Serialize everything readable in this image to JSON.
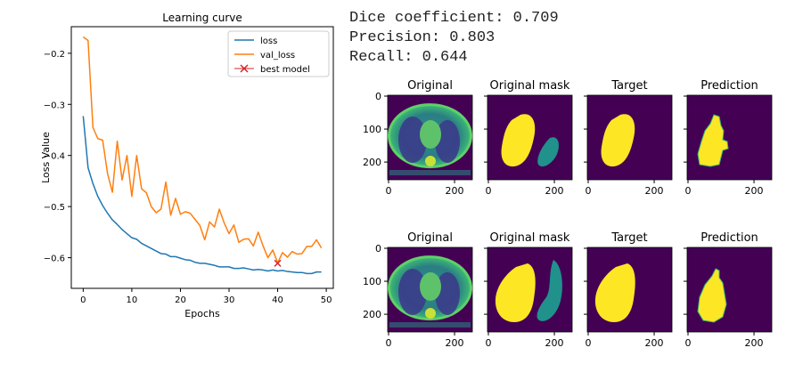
{
  "metrics": [
    {
      "label": "Dice coefficient",
      "value": "0.709"
    },
    {
      "label": "Precision",
      "value": "0.803"
    },
    {
      "label": "Recall",
      "value": "0.644"
    }
  ],
  "chart_data": {
    "type": "line",
    "title": "Learning curve",
    "xlabel": "Epochs",
    "ylabel": "Loss Value",
    "xlim": [
      -2.45,
      51.45
    ],
    "ylim": [
      -0.66,
      -0.148
    ],
    "xticks": [
      0,
      10,
      20,
      30,
      40,
      50
    ],
    "yticks": [
      -0.6,
      -0.5,
      -0.4,
      -0.3,
      -0.2
    ],
    "tick_labels_x": [
      "0",
      "10",
      "20",
      "30",
      "40",
      "50"
    ],
    "tick_labels_y": [
      "−0.6",
      "−0.5",
      "−0.4",
      "−0.3",
      "−0.2"
    ],
    "grid": false,
    "legend": "top-right",
    "colors": {
      "loss": "#1f77b4",
      "val_loss": "#ff7f0e",
      "best_model": "#d62728"
    },
    "series": [
      {
        "name": "loss",
        "x": [
          0,
          1,
          2,
          3,
          4,
          5,
          6,
          7,
          8,
          9,
          10,
          11,
          12,
          13,
          14,
          15,
          16,
          17,
          18,
          19,
          20,
          21,
          22,
          23,
          24,
          25,
          26,
          27,
          28,
          29,
          30,
          31,
          32,
          33,
          34,
          35,
          36,
          37,
          38,
          39,
          40,
          41,
          42,
          43,
          44,
          45,
          46,
          47,
          48,
          49
        ],
        "y": [
          -0.323,
          -0.424,
          -0.455,
          -0.48,
          -0.498,
          -0.513,
          -0.526,
          -0.535,
          -0.545,
          -0.553,
          -0.561,
          -0.564,
          -0.572,
          -0.577,
          -0.582,
          -0.587,
          -0.592,
          -0.593,
          -0.598,
          -0.598,
          -0.601,
          -0.604,
          -0.605,
          -0.609,
          -0.611,
          -0.611,
          -0.613,
          -0.615,
          -0.618,
          -0.618,
          -0.618,
          -0.621,
          -0.621,
          -0.62,
          -0.622,
          -0.624,
          -0.623,
          -0.624,
          -0.626,
          -0.624,
          -0.626,
          -0.625,
          -0.627,
          -0.628,
          -0.629,
          -0.629,
          -0.631,
          -0.631,
          -0.628,
          -0.628
        ]
      },
      {
        "name": "val_loss",
        "x": [
          0,
          1,
          2,
          3,
          4,
          5,
          6,
          7,
          8,
          9,
          10,
          11,
          12,
          13,
          14,
          15,
          16,
          17,
          18,
          19,
          20,
          21,
          22,
          23,
          24,
          25,
          26,
          27,
          28,
          29,
          30,
          31,
          32,
          33,
          34,
          35,
          36,
          37,
          38,
          39,
          40,
          41,
          42,
          43,
          44,
          45,
          46,
          47,
          48,
          49
        ],
        "y": [
          -0.168,
          -0.175,
          -0.345,
          -0.367,
          -0.37,
          -0.435,
          -0.472,
          -0.372,
          -0.448,
          -0.4,
          -0.48,
          -0.4,
          -0.465,
          -0.473,
          -0.5,
          -0.512,
          -0.505,
          -0.452,
          -0.517,
          -0.484,
          -0.515,
          -0.51,
          -0.513,
          -0.525,
          -0.537,
          -0.565,
          -0.53,
          -0.54,
          -0.505,
          -0.532,
          -0.553,
          -0.536,
          -0.57,
          -0.564,
          -0.563,
          -0.577,
          -0.55,
          -0.577,
          -0.6,
          -0.585,
          -0.61,
          -0.59,
          -0.599,
          -0.588,
          -0.593,
          -0.592,
          -0.578,
          -0.578,
          -0.565,
          -0.581
        ]
      }
    ],
    "best_model": {
      "name": "best model",
      "x": 40,
      "y": -0.611
    }
  },
  "panels": {
    "titles": [
      "Original",
      "Original mask",
      "Target",
      "Prediction"
    ],
    "y_tick_labels": [
      "0",
      "100",
      "200"
    ],
    "x_tick_labels": [
      "0",
      "200"
    ]
  }
}
